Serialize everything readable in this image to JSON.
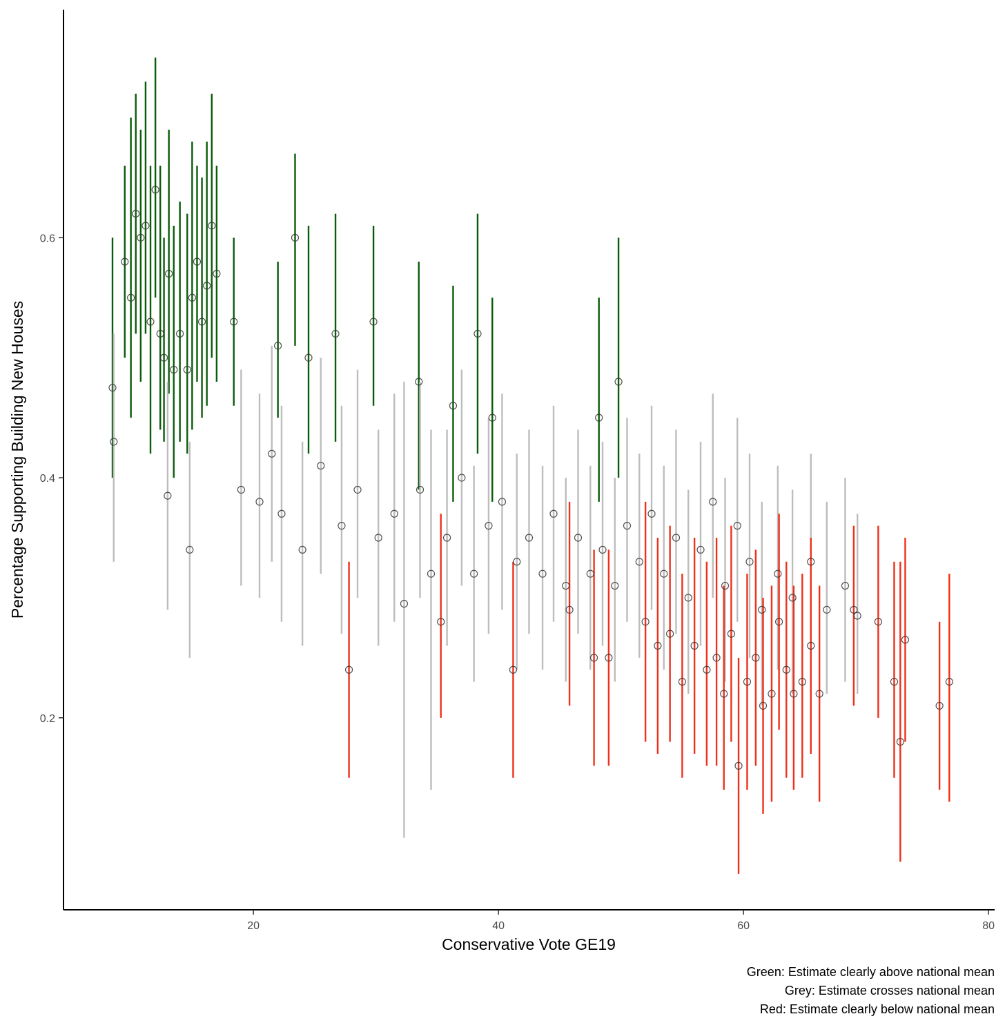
{
  "chart_data": {
    "type": "scatter",
    "title": "",
    "xlabel": "Conservative Vote GE19",
    "ylabel": "Percentage Supporting Building New Houses",
    "xlim": [
      4.5,
      80.5
    ],
    "ylim": [
      0.04,
      0.79
    ],
    "x_ticks": [
      20,
      40,
      60,
      80
    ],
    "y_ticks": [
      0.2,
      0.4,
      0.6
    ],
    "x_tick_labels": [
      "20",
      "40",
      "60",
      "80"
    ],
    "y_tick_labels": [
      "0.2",
      "0.4",
      "0.6"
    ],
    "grid": false,
    "legend": "none",
    "caption": [
      "Green: Estimate clearly above national mean",
      "Grey: Estimate crosses national mean",
      "Red: Estimate clearly below national mean"
    ],
    "colors": {
      "above": "#0a5c0a",
      "crosses": "#bdbdbd",
      "below": "#f0301a",
      "point": "#333333"
    },
    "series": [
      {
        "category": "above",
        "points": [
          [
            8.5,
            0.475,
            0.4,
            0.6
          ],
          [
            9.5,
            0.58,
            0.5,
            0.66
          ],
          [
            10.0,
            0.55,
            0.45,
            0.7
          ],
          [
            10.4,
            0.62,
            0.52,
            0.72
          ],
          [
            10.8,
            0.6,
            0.48,
            0.69
          ],
          [
            11.2,
            0.61,
            0.52,
            0.73
          ],
          [
            11.6,
            0.53,
            0.42,
            0.66
          ],
          [
            12.0,
            0.64,
            0.55,
            0.75
          ],
          [
            12.4,
            0.52,
            0.44,
            0.66
          ],
          [
            12.7,
            0.5,
            0.43,
            0.6
          ],
          [
            13.1,
            0.57,
            0.47,
            0.69
          ],
          [
            13.5,
            0.49,
            0.4,
            0.61
          ],
          [
            14.0,
            0.52,
            0.43,
            0.63
          ],
          [
            14.6,
            0.49,
            0.42,
            0.62
          ],
          [
            15.0,
            0.55,
            0.44,
            0.68
          ],
          [
            15.4,
            0.58,
            0.48,
            0.66
          ],
          [
            15.8,
            0.53,
            0.45,
            0.65
          ],
          [
            16.2,
            0.56,
            0.46,
            0.68
          ],
          [
            16.6,
            0.61,
            0.5,
            0.72
          ],
          [
            17.0,
            0.57,
            0.48,
            0.66
          ],
          [
            18.4,
            0.53,
            0.46,
            0.6
          ],
          [
            22.0,
            0.51,
            0.45,
            0.58
          ],
          [
            23.4,
            0.6,
            0.51,
            0.67
          ],
          [
            24.5,
            0.5,
            0.42,
            0.61
          ],
          [
            26.7,
            0.52,
            0.43,
            0.62
          ],
          [
            29.8,
            0.53,
            0.46,
            0.61
          ],
          [
            33.5,
            0.48,
            0.39,
            0.58
          ],
          [
            36.3,
            0.46,
            0.38,
            0.56
          ],
          [
            38.3,
            0.52,
            0.42,
            0.62
          ],
          [
            39.5,
            0.45,
            0.38,
            0.55
          ],
          [
            48.2,
            0.45,
            0.38,
            0.55
          ],
          [
            49.8,
            0.48,
            0.4,
            0.6
          ]
        ]
      },
      {
        "category": "crosses",
        "points": [
          [
            8.6,
            0.43,
            0.33,
            0.52
          ],
          [
            13.0,
            0.385,
            0.29,
            0.48
          ],
          [
            14.8,
            0.34,
            0.25,
            0.43
          ],
          [
            19.0,
            0.39,
            0.31,
            0.49
          ],
          [
            20.5,
            0.38,
            0.3,
            0.47
          ],
          [
            21.5,
            0.42,
            0.33,
            0.51
          ],
          [
            22.3,
            0.37,
            0.28,
            0.46
          ],
          [
            24.0,
            0.34,
            0.26,
            0.43
          ],
          [
            25.5,
            0.41,
            0.32,
            0.5
          ],
          [
            27.2,
            0.36,
            0.27,
            0.46
          ],
          [
            28.5,
            0.39,
            0.3,
            0.49
          ],
          [
            30.2,
            0.35,
            0.26,
            0.44
          ],
          [
            31.5,
            0.37,
            0.28,
            0.47
          ],
          [
            32.3,
            0.295,
            0.1,
            0.48
          ],
          [
            33.6,
            0.39,
            0.3,
            0.48
          ],
          [
            34.5,
            0.32,
            0.14,
            0.44
          ],
          [
            35.8,
            0.35,
            0.26,
            0.44
          ],
          [
            37.0,
            0.4,
            0.31,
            0.49
          ],
          [
            38.0,
            0.32,
            0.23,
            0.41
          ],
          [
            39.2,
            0.36,
            0.27,
            0.45
          ],
          [
            40.3,
            0.38,
            0.29,
            0.47
          ],
          [
            41.5,
            0.33,
            0.24,
            0.42
          ],
          [
            42.5,
            0.35,
            0.27,
            0.44
          ],
          [
            43.6,
            0.32,
            0.24,
            0.41
          ],
          [
            44.5,
            0.37,
            0.28,
            0.46
          ],
          [
            45.5,
            0.31,
            0.23,
            0.4
          ],
          [
            46.5,
            0.35,
            0.27,
            0.44
          ],
          [
            47.5,
            0.32,
            0.24,
            0.41
          ],
          [
            48.5,
            0.34,
            0.26,
            0.43
          ],
          [
            49.5,
            0.31,
            0.23,
            0.4
          ],
          [
            50.5,
            0.36,
            0.28,
            0.45
          ],
          [
            51.5,
            0.33,
            0.25,
            0.42
          ],
          [
            52.5,
            0.37,
            0.29,
            0.46
          ],
          [
            53.5,
            0.32,
            0.24,
            0.41
          ],
          [
            54.5,
            0.35,
            0.27,
            0.44
          ],
          [
            55.5,
            0.3,
            0.22,
            0.39
          ],
          [
            56.5,
            0.34,
            0.26,
            0.43
          ],
          [
            57.5,
            0.38,
            0.3,
            0.47
          ],
          [
            58.5,
            0.31,
            0.23,
            0.4
          ],
          [
            59.5,
            0.36,
            0.28,
            0.45
          ],
          [
            60.5,
            0.33,
            0.25,
            0.42
          ],
          [
            61.5,
            0.29,
            0.21,
            0.38
          ],
          [
            62.8,
            0.32,
            0.24,
            0.41
          ],
          [
            64.0,
            0.3,
            0.22,
            0.39
          ],
          [
            65.5,
            0.33,
            0.25,
            0.42
          ],
          [
            66.8,
            0.29,
            0.22,
            0.38
          ],
          [
            68.3,
            0.31,
            0.23,
            0.4
          ],
          [
            69.3,
            0.285,
            0.22,
            0.37
          ]
        ]
      },
      {
        "category": "below",
        "points": [
          [
            27.8,
            0.24,
            0.15,
            0.33
          ],
          [
            35.3,
            0.28,
            0.2,
            0.37
          ],
          [
            41.2,
            0.24,
            0.15,
            0.33
          ],
          [
            45.8,
            0.29,
            0.21,
            0.38
          ],
          [
            47.8,
            0.25,
            0.16,
            0.34
          ],
          [
            49.0,
            0.25,
            0.16,
            0.34
          ],
          [
            52.0,
            0.28,
            0.18,
            0.38
          ],
          [
            53.0,
            0.26,
            0.17,
            0.35
          ],
          [
            54.0,
            0.27,
            0.18,
            0.36
          ],
          [
            55.0,
            0.23,
            0.15,
            0.32
          ],
          [
            56.0,
            0.26,
            0.17,
            0.35
          ],
          [
            57.0,
            0.24,
            0.16,
            0.33
          ],
          [
            57.8,
            0.25,
            0.16,
            0.35
          ],
          [
            58.4,
            0.22,
            0.14,
            0.31
          ],
          [
            59.0,
            0.27,
            0.18,
            0.36
          ],
          [
            59.6,
            0.16,
            0.07,
            0.25
          ],
          [
            60.3,
            0.23,
            0.14,
            0.32
          ],
          [
            61.0,
            0.25,
            0.16,
            0.34
          ],
          [
            61.6,
            0.21,
            0.12,
            0.3
          ],
          [
            62.3,
            0.22,
            0.13,
            0.31
          ],
          [
            62.9,
            0.28,
            0.19,
            0.37
          ],
          [
            63.5,
            0.24,
            0.15,
            0.33
          ],
          [
            64.1,
            0.22,
            0.14,
            0.31
          ],
          [
            64.8,
            0.23,
            0.15,
            0.32
          ],
          [
            65.5,
            0.26,
            0.17,
            0.35
          ],
          [
            66.2,
            0.22,
            0.13,
            0.31
          ],
          [
            69.0,
            0.29,
            0.21,
            0.36
          ],
          [
            71.0,
            0.28,
            0.2,
            0.36
          ],
          [
            72.3,
            0.23,
            0.15,
            0.33
          ],
          [
            72.8,
            0.18,
            0.08,
            0.33
          ],
          [
            73.2,
            0.265,
            0.18,
            0.35
          ],
          [
            76.0,
            0.21,
            0.14,
            0.28
          ],
          [
            76.8,
            0.23,
            0.13,
            0.32
          ]
        ]
      }
    ]
  }
}
